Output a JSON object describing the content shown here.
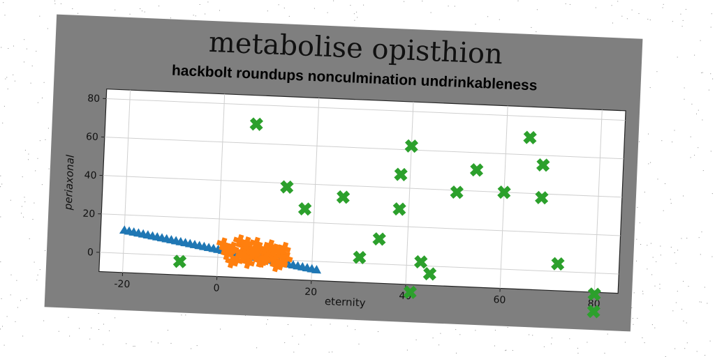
{
  "chart_data": {
    "type": "scatter",
    "title": "metabolise opisthion",
    "subtitle": "hackbolt roundups nonculmination undrinkableness",
    "xlabel": "eternity",
    "ylabel": "periaxonal",
    "xlim": [
      -25,
      85
    ],
    "ylim": [
      -10,
      85
    ],
    "xticks": [
      -20,
      0,
      20,
      40,
      60,
      80
    ],
    "yticks": [
      0,
      20,
      40,
      60,
      80
    ],
    "grid": true,
    "series": [
      {
        "marker": "triangle",
        "color": "#1f77b4",
        "x": [
          -20,
          -19,
          -18,
          -17,
          -16,
          -15,
          -14,
          -13,
          -12,
          -11,
          -10,
          -9,
          -8,
          -7,
          -6,
          -5,
          -4,
          -3,
          -2,
          -1,
          0,
          1,
          2,
          3,
          4,
          5,
          6,
          7,
          8,
          9,
          10,
          11,
          12,
          13,
          14,
          15,
          16,
          17,
          18,
          19,
          20,
          21
        ],
        "y": [
          12,
          11.6,
          11.2,
          10.8,
          10.4,
          10,
          9.6,
          9.2,
          8.8,
          8.4,
          8,
          7.6,
          7.2,
          6.8,
          6.4,
          6,
          5.6,
          5.2,
          4.8,
          4.4,
          4,
          3.6,
          3.2,
          2.8,
          2.4,
          2,
          1.6,
          1.2,
          0.8,
          0.4,
          0,
          -0.4,
          -0.8,
          -1.2,
          -1.6,
          -2,
          -2.4,
          -2.8,
          -3.2,
          -3.6,
          -4,
          -4.4
        ]
      },
      {
        "marker": "plus-filled",
        "color": "#ff7f0e",
        "x": [
          1,
          2,
          3,
          4,
          4.5,
          5,
          6,
          6.5,
          7,
          8,
          8.5,
          9,
          10,
          10.5,
          11,
          12,
          12.5,
          13,
          14,
          14.5,
          3,
          5.5,
          7.5,
          9.5,
          11.5,
          13.5,
          2.5,
          6,
          10,
          12
        ],
        "y": [
          7,
          2,
          5,
          -1,
          9,
          3,
          6,
          -2,
          1,
          8,
          4,
          -1,
          5,
          2,
          7,
          0,
          -3,
          4,
          6,
          1,
          -2,
          1,
          3,
          -1,
          2,
          -2,
          4,
          8,
          0,
          5
        ]
      },
      {
        "marker": "x-filled",
        "color": "#2ca02c",
        "x": [
          -8,
          7,
          14,
          18,
          26,
          30,
          34,
          38,
          38,
          40,
          41,
          43,
          45,
          50,
          54,
          60,
          65,
          68,
          68,
          72,
          80,
          80
        ],
        "y": [
          -3,
          70,
          38,
          27,
          34,
          3,
          13,
          29,
          47,
          62,
          -14,
          2,
          -4,
          39,
          51,
          40,
          69,
          55,
          38,
          4,
          -11,
          -20
        ]
      }
    ]
  }
}
